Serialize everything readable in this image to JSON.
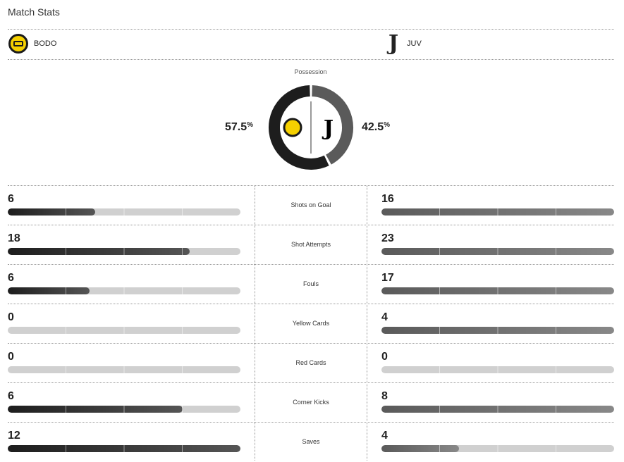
{
  "title": "Match Stats",
  "home": {
    "name": "BODO",
    "color": "#1d1d1d"
  },
  "away": {
    "name": "JUV",
    "color": "#5a5a5a"
  },
  "possession": {
    "label": "Possession",
    "home": 57.5,
    "away": 42.5,
    "home_text": "57.5",
    "away_text": "42.5",
    "unit": "%"
  },
  "stats": [
    {
      "label": "Shots on Goal",
      "home": 6,
      "away": 16
    },
    {
      "label": "Shot Attempts",
      "home": 18,
      "away": 23
    },
    {
      "label": "Fouls",
      "home": 6,
      "away": 17
    },
    {
      "label": "Yellow Cards",
      "home": 0,
      "away": 4
    },
    {
      "label": "Red Cards",
      "home": 0,
      "away": 0
    },
    {
      "label": "Corner Kicks",
      "home": 6,
      "away": 8
    },
    {
      "label": "Saves",
      "home": 12,
      "away": 4
    }
  ]
}
